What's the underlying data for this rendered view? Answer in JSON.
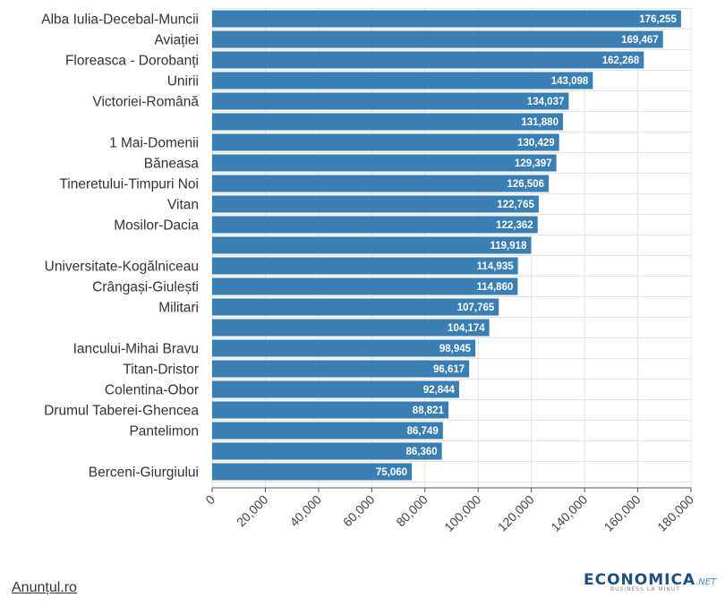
{
  "chart_data": {
    "type": "bar",
    "orientation": "horizontal",
    "categories": [
      "Alba Iulia-Decebal-Muncii",
      "Aviației",
      "Floreasca - Dorobanți",
      "Unirii",
      "Victoriei-Română",
      "",
      "1 Mai-Domenii",
      "Băneasa",
      "Tineretului-Timpuri Noi",
      "Vitan",
      "Mosilor-Dacia",
      "",
      "Universitate-Kogălniceau",
      "Crângași-Giulești",
      "Militari",
      "",
      "Iancului-Mihai Bravu",
      "Titan-Dristor",
      "Colentina-Obor",
      "Drumul Taberei-Ghencea",
      "Pantelimon",
      "",
      "Berceni-Giurgiului"
    ],
    "values": [
      176255,
      169467,
      162268,
      143098,
      134037,
      131880,
      130429,
      129397,
      126506,
      122765,
      122362,
      119918,
      114935,
      114860,
      107765,
      104174,
      98945,
      96617,
      92844,
      88821,
      86749,
      86360,
      75060
    ],
    "value_labels": [
      "176,255",
      "169,467",
      "162,268",
      "143,098",
      "134,037",
      "131,880",
      "130,429",
      "129,397",
      "126,506",
      "122,765",
      "122,362",
      "119,918",
      "114,935",
      "114,860",
      "107,765",
      "104,174",
      "98,945",
      "96,617",
      "92,844",
      "88,821",
      "86,749",
      "86,360",
      "75,060"
    ],
    "xlim": [
      0,
      180000
    ],
    "ticks": [
      0,
      20000,
      40000,
      60000,
      80000,
      100000,
      120000,
      140000,
      160000,
      180000
    ],
    "tick_labels": [
      "0",
      "20,000",
      "40,000",
      "60,000",
      "80,000",
      "100,000",
      "120,000",
      "140,000",
      "160,000",
      "180,000"
    ],
    "grid": true,
    "bar_color": "#3a7fb3"
  },
  "footer": {
    "source": "Anunțul.ro",
    "logo_text": "ECONOMICA",
    "logo_suffix": ".NET",
    "logo_tagline": "BUSINESS LA MINUT"
  }
}
